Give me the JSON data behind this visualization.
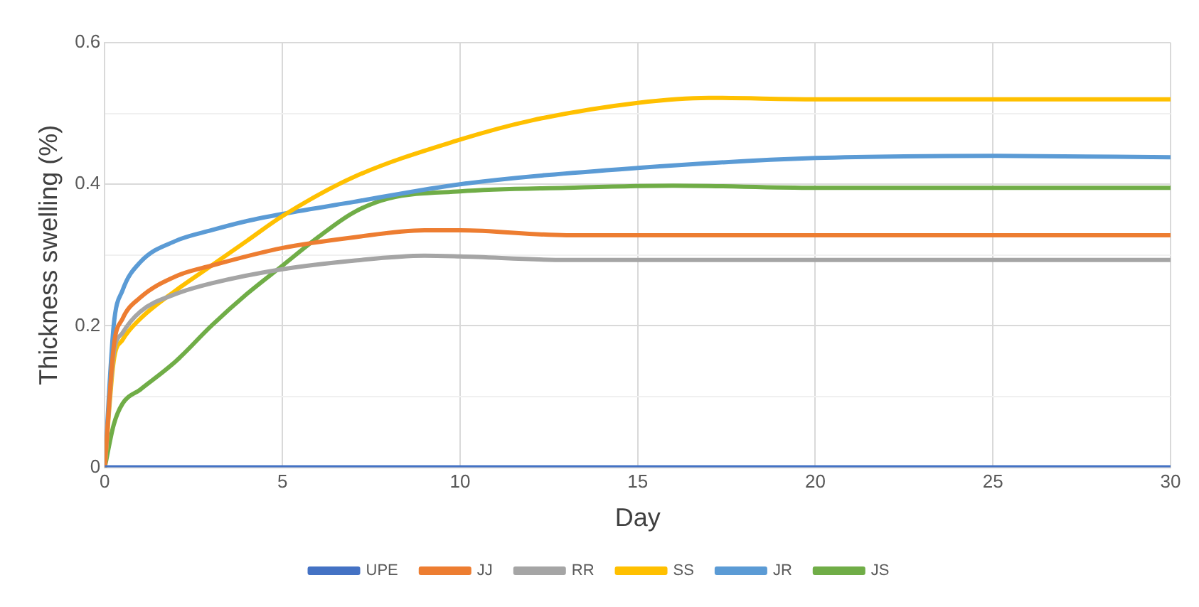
{
  "chart_data": {
    "type": "line",
    "xlabel": "Day",
    "ylabel": "Thickness swelling (%)",
    "xlim": [
      0,
      30
    ],
    "xticks": [
      0,
      5,
      10,
      15,
      20,
      25,
      30
    ],
    "ylim": [
      0,
      0.6
    ],
    "yticks": [
      0,
      {
        "value": 0.1,
        "label": null
      },
      0.2,
      {
        "value": 0.3,
        "label": null
      },
      0.4,
      {
        "value": 0.5,
        "label": null
      },
      0.6
    ],
    "grid": true,
    "legend": "bottom",
    "marker": "none",
    "line_style": "solid",
    "series": [
      {
        "name": "UPE",
        "color": "#4472c4",
        "x": [
          0,
          30
        ],
        "values": [
          0,
          0
        ]
      },
      {
        "name": "JJ",
        "color": "#ed7d31",
        "x": [
          0,
          0.25,
          0.5,
          1,
          2,
          3,
          5,
          7,
          9,
          10,
          13,
          30
        ],
        "values": [
          0,
          0.17,
          0.21,
          0.24,
          0.27,
          0.285,
          0.31,
          0.325,
          0.335,
          0.335,
          0.328,
          0.328
        ]
      },
      {
        "name": "RR",
        "color": "#a5a5a5",
        "x": [
          0,
          0.25,
          0.5,
          1,
          2,
          3,
          5,
          7,
          9,
          10,
          13,
          30
        ],
        "values": [
          0,
          0.16,
          0.19,
          0.22,
          0.245,
          0.26,
          0.28,
          0.292,
          0.299,
          0.298,
          0.293,
          0.293
        ]
      },
      {
        "name": "SS",
        "color": "#ffc000",
        "x": [
          0,
          0.25,
          0.5,
          1,
          2,
          3,
          4,
          5,
          7,
          10,
          12,
          15,
          17,
          20,
          30
        ],
        "values": [
          0,
          0.15,
          0.18,
          0.21,
          0.25,
          0.285,
          0.32,
          0.355,
          0.41,
          0.463,
          0.49,
          0.515,
          0.522,
          0.52,
          0.52
        ]
      },
      {
        "name": "JR",
        "color": "#5b9bd5",
        "x": [
          0,
          0.25,
          0.5,
          1,
          2,
          3,
          4,
          5,
          7,
          10,
          15,
          20,
          25,
          30
        ],
        "values": [
          0,
          0.2,
          0.25,
          0.29,
          0.32,
          0.335,
          0.348,
          0.358,
          0.375,
          0.4,
          0.423,
          0.437,
          0.44,
          0.438
        ]
      },
      {
        "name": "JS",
        "color": "#70ad47",
        "x": [
          0,
          0.25,
          0.5,
          1,
          2,
          3,
          4,
          5,
          6,
          7,
          8,
          10,
          13,
          16,
          20,
          30
        ],
        "values": [
          0,
          0.06,
          0.09,
          0.11,
          0.15,
          0.2,
          0.245,
          0.285,
          0.325,
          0.36,
          0.38,
          0.39,
          0.395,
          0.398,
          0.395,
          0.395
        ]
      }
    ]
  }
}
